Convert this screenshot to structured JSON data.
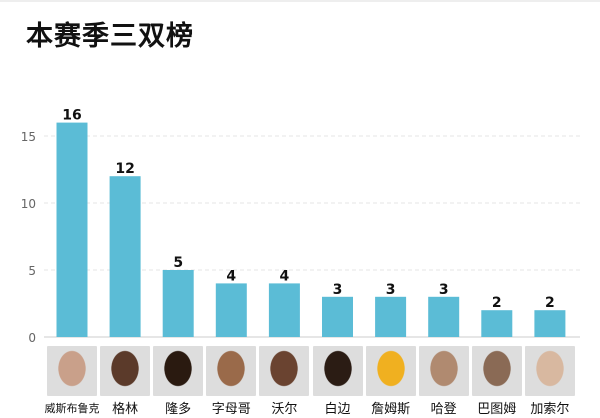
{
  "chart_data": {
    "type": "bar",
    "title": "本赛季三双榜",
    "categories": [
      "威斯布鲁克",
      "格林",
      "隆多",
      "字母哥",
      "沃尔",
      "白边",
      "詹姆斯",
      "哈登",
      "巴图姆",
      "加索尔"
    ],
    "values": [
      16,
      12,
      5,
      4,
      4,
      3,
      3,
      3,
      2,
      2
    ],
    "xlabel": "",
    "ylabel": "",
    "ylim": [
      0,
      17
    ],
    "yticks": [
      0,
      5,
      10,
      15
    ],
    "grid": true,
    "bar_color": "#5bbcd6",
    "photo_colors": [
      "#c9a08a",
      "#5b3a2a",
      "#2a1a10",
      "#9a6a4a",
      "#6a4330",
      "#2b1c14",
      "#f0b020",
      "#b08a70",
      "#8a6a55",
      "#d8b8a0"
    ]
  }
}
